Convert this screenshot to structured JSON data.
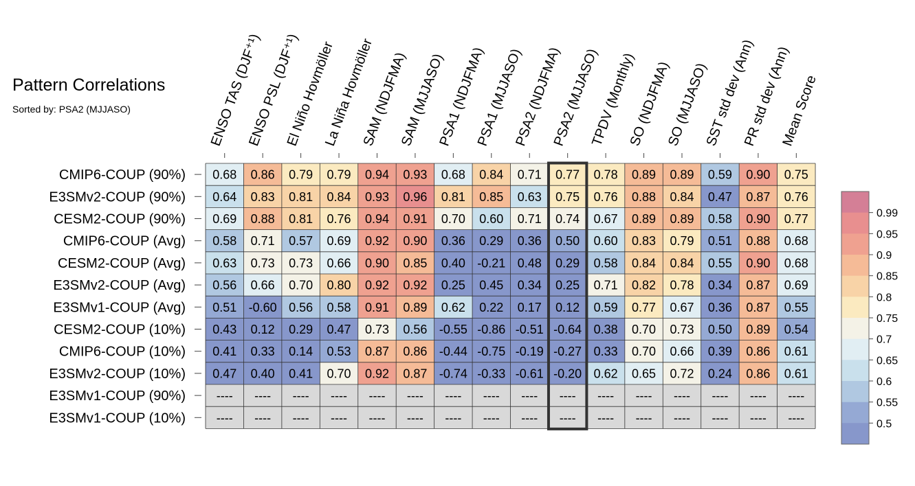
{
  "chart_data": {
    "type": "heatmap",
    "title": "Pattern Correlations",
    "subtitle": "Sorted by: PSA2 (MJJASO)",
    "highlight_column": "PSA2 (MJJASO)",
    "columns": [
      "ENSO TAS (DJF⁺¹)",
      "ENSO PSL (DJF⁺¹)",
      "El Niño Hovmöller",
      "La Niña Hovmöller",
      "SAM (NDJFMA)",
      "SAM (MJJASO)",
      "PSA1 (NDJFMA)",
      "PSA1 (MJJASO)",
      "PSA2 (NDJFMA)",
      "PSA2 (MJJASO)",
      "TPDV (Monthly)",
      "SO (NDJFMA)",
      "SO (MJJASO)",
      "SST std dev (Ann)",
      "PR std dev (Ann)",
      "Mean Score"
    ],
    "rows": [
      {
        "label": "CMIP6-COUP (90%)",
        "values": [
          "0.68",
          "0.86",
          "0.79",
          "0.79",
          "0.94",
          "0.93",
          "0.68",
          "0.84",
          "0.71",
          "0.77",
          "0.78",
          "0.89",
          "0.89",
          "0.59",
          "0.90",
          "0.75"
        ]
      },
      {
        "label": "E3SMv2-COUP (90%)",
        "values": [
          "0.64",
          "0.83",
          "0.81",
          "0.84",
          "0.93",
          "0.96",
          "0.81",
          "0.85",
          "0.63",
          "0.75",
          "0.76",
          "0.88",
          "0.84",
          "0.47",
          "0.87",
          "0.76"
        ]
      },
      {
        "label": "CESM2-COUP (90%)",
        "values": [
          "0.69",
          "0.88",
          "0.81",
          "0.76",
          "0.94",
          "0.91",
          "0.70",
          "0.60",
          "0.71",
          "0.74",
          "0.67",
          "0.89",
          "0.89",
          "0.58",
          "0.90",
          "0.77"
        ]
      },
      {
        "label": "CMIP6-COUP (Avg)",
        "values": [
          "0.58",
          "0.71",
          "0.57",
          "0.69",
          "0.92",
          "0.90",
          "0.36",
          "0.29",
          "0.36",
          "0.50",
          "0.60",
          "0.83",
          "0.79",
          "0.51",
          "0.88",
          "0.68"
        ]
      },
      {
        "label": "CESM2-COUP (Avg)",
        "values": [
          "0.63",
          "0.73",
          "0.73",
          "0.66",
          "0.90",
          "0.85",
          "0.40",
          "-0.21",
          "0.48",
          "0.29",
          "0.58",
          "0.84",
          "0.84",
          "0.55",
          "0.90",
          "0.68"
        ]
      },
      {
        "label": "E3SMv2-COUP (Avg)",
        "values": [
          "0.56",
          "0.66",
          "0.70",
          "0.80",
          "0.92",
          "0.92",
          "0.25",
          "0.45",
          "0.34",
          "0.25",
          "0.71",
          "0.82",
          "0.78",
          "0.34",
          "0.87",
          "0.69"
        ]
      },
      {
        "label": "E3SMv1-COUP (Avg)",
        "values": [
          "0.51",
          "-0.60",
          "0.56",
          "0.58",
          "0.91",
          "0.89",
          "0.62",
          "0.22",
          "0.17",
          "0.12",
          "0.59",
          "0.77",
          "0.67",
          "0.36",
          "0.87",
          "0.55"
        ]
      },
      {
        "label": "CESM2-COUP (10%)",
        "values": [
          "0.43",
          "0.12",
          "0.29",
          "0.47",
          "0.73",
          "0.56",
          "-0.55",
          "-0.86",
          "-0.51",
          "-0.64",
          "0.38",
          "0.70",
          "0.73",
          "0.50",
          "0.89",
          "0.54"
        ]
      },
      {
        "label": "CMIP6-COUP (10%)",
        "values": [
          "0.41",
          "0.33",
          "0.14",
          "0.53",
          "0.87",
          "0.86",
          "-0.44",
          "-0.75",
          "-0.19",
          "-0.27",
          "0.33",
          "0.70",
          "0.66",
          "0.39",
          "0.86",
          "0.61"
        ]
      },
      {
        "label": "E3SMv2-COUP (10%)",
        "values": [
          "0.47",
          "0.40",
          "0.41",
          "0.70",
          "0.92",
          "0.87",
          "-0.74",
          "-0.33",
          "-0.61",
          "-0.20",
          "0.62",
          "0.65",
          "0.72",
          "0.24",
          "0.86",
          "0.61"
        ]
      },
      {
        "label": "E3SMv1-COUP (90%)",
        "values": [
          "----",
          "----",
          "----",
          "----",
          "----",
          "----",
          "----",
          "----",
          "----",
          "----",
          "----",
          "----",
          "----",
          "----",
          "----",
          "----"
        ]
      },
      {
        "label": "E3SMv1-COUP (10%)",
        "values": [
          "----",
          "----",
          "----",
          "----",
          "----",
          "----",
          "----",
          "----",
          "----",
          "----",
          "----",
          "----",
          "----",
          "----",
          "----",
          "----"
        ]
      }
    ],
    "colorbar": {
      "ticks": [
        "0.99",
        "0.95",
        "0.9",
        "0.85",
        "0.8",
        "0.75",
        "0.7",
        "0.65",
        "0.6",
        "0.55",
        "0.5"
      ],
      "colors": [
        "#d47f96",
        "#e88f8f",
        "#efa190",
        "#f5bb97",
        "#f8d3a7",
        "#fbeac0",
        "#f4f2e7",
        "#e1eef3",
        "#c9e0ec",
        "#b0c8e1",
        "#95a9d4",
        "#8797cb"
      ]
    },
    "missing_color": "#d9d9d9"
  }
}
